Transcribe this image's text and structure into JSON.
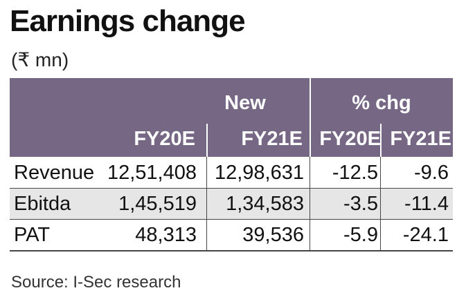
{
  "title": "Earnings change",
  "unit": "(₹ mn)",
  "header": {
    "group_new": "New",
    "group_chg": "% chg",
    "columns": [
      "FY20E",
      "FY21E",
      "FY20E",
      "FY21E"
    ]
  },
  "rows": [
    {
      "label": "Revenue",
      "values": [
        "12,51,408",
        "12,98,631",
        "-12.5",
        "-9.6"
      ]
    },
    {
      "label": "Ebitda",
      "values": [
        "1,45,519",
        "1,34,583",
        "-3.5",
        "-11.4"
      ]
    },
    {
      "label": "PAT",
      "values": [
        "48,313",
        "39,536",
        "-5.9",
        "-24.1"
      ]
    }
  ],
  "source": "Source: I-Sec research",
  "colors": {
    "header_bg": "#766885",
    "alt_row": "#e6e6e6"
  }
}
